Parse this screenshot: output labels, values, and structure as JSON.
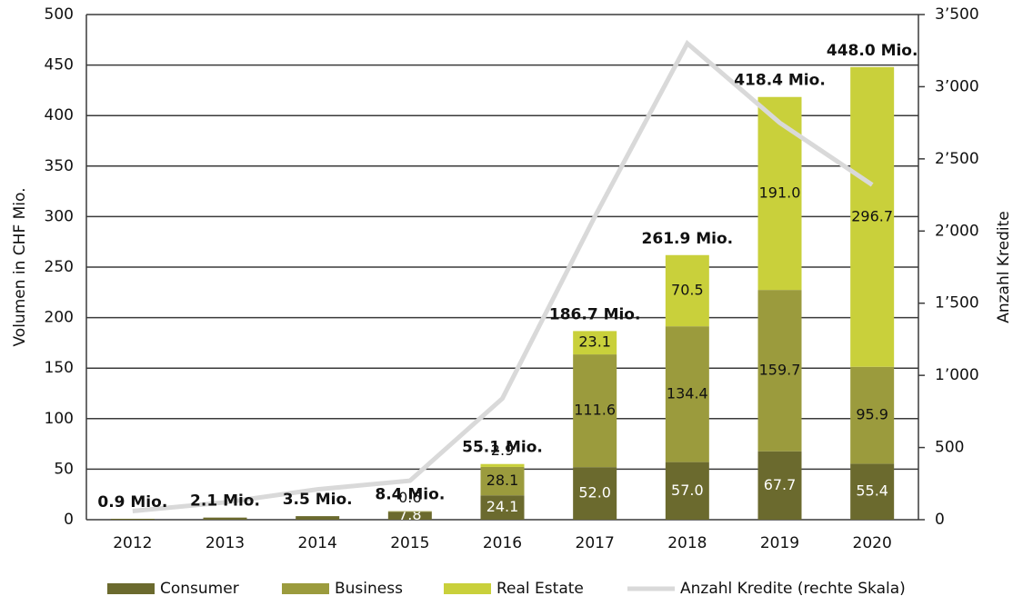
{
  "chart_data": {
    "type": "bar",
    "categories": [
      "2012",
      "2013",
      "2014",
      "2015",
      "2016",
      "2017",
      "2018",
      "2019",
      "2020"
    ],
    "series": [
      {
        "name": "Consumer",
        "color": "#6b6a2e",
        "values": [
          0.9,
          2.1,
          3.5,
          7.8,
          24.1,
          52.0,
          57.0,
          67.7,
          55.4
        ],
        "value_labels": [
          null,
          null,
          null,
          "7.8",
          "24.1",
          "52.0",
          "57.0",
          "67.7",
          "55.4"
        ]
      },
      {
        "name": "Business",
        "color": "#9b9b3d",
        "values": [
          0,
          0,
          0,
          0.6,
          28.1,
          111.6,
          134.4,
          159.7,
          95.9
        ],
        "value_labels": [
          null,
          null,
          null,
          "0.6",
          "28.1",
          "111.6",
          "134.4",
          "159.7",
          "95.9"
        ]
      },
      {
        "name": "Real Estate",
        "color": "#c9d03b",
        "values": [
          0,
          0,
          0,
          0,
          2.9,
          23.1,
          70.5,
          191.0,
          296.7
        ],
        "value_labels": [
          null,
          null,
          null,
          null,
          "2.9",
          "23.1",
          "70.5",
          "191.0",
          "296.7"
        ]
      },
      {
        "name": "Anzahl Kredite (rechte Skala)",
        "type": "line",
        "axis": "y2",
        "color": "#d9d9d9",
        "values": [
          60,
          120,
          210,
          270,
          840,
          2100,
          3300,
          2750,
          2320
        ]
      }
    ],
    "totals": [
      0.9,
      2.1,
      3.5,
      8.4,
      55.1,
      186.7,
      261.9,
      418.4,
      448.0
    ],
    "total_labels": [
      "0.9 Mio.",
      "2.1 Mio.",
      "3.5 Mio.",
      "8.4 Mio.",
      "55.1 Mio.",
      "186.7 Mio.",
      "261.9 Mio.",
      "418.4 Mio.",
      "448.0 Mio."
    ],
    "y_label": "Volumen in CHF Mio.",
    "y2_label": "Anzahl Kredite",
    "ylim": [
      0,
      500
    ],
    "yticks": [
      0,
      50,
      100,
      150,
      200,
      250,
      300,
      350,
      400,
      450,
      500
    ],
    "y2lim": [
      0,
      3500
    ],
    "y2ticks": [
      0,
      500,
      {
        "value": 1000,
        "label": "1’000"
      },
      {
        "value": 1500,
        "label": "1’500"
      },
      {
        "value": 2000,
        "label": "2’000"
      },
      {
        "value": 2500,
        "label": "2’500"
      },
      {
        "value": 3000,
        "label": "3’000"
      },
      {
        "value": 3500,
        "label": "3’500"
      }
    ],
    "grid": true,
    "legend": "bottom"
  }
}
